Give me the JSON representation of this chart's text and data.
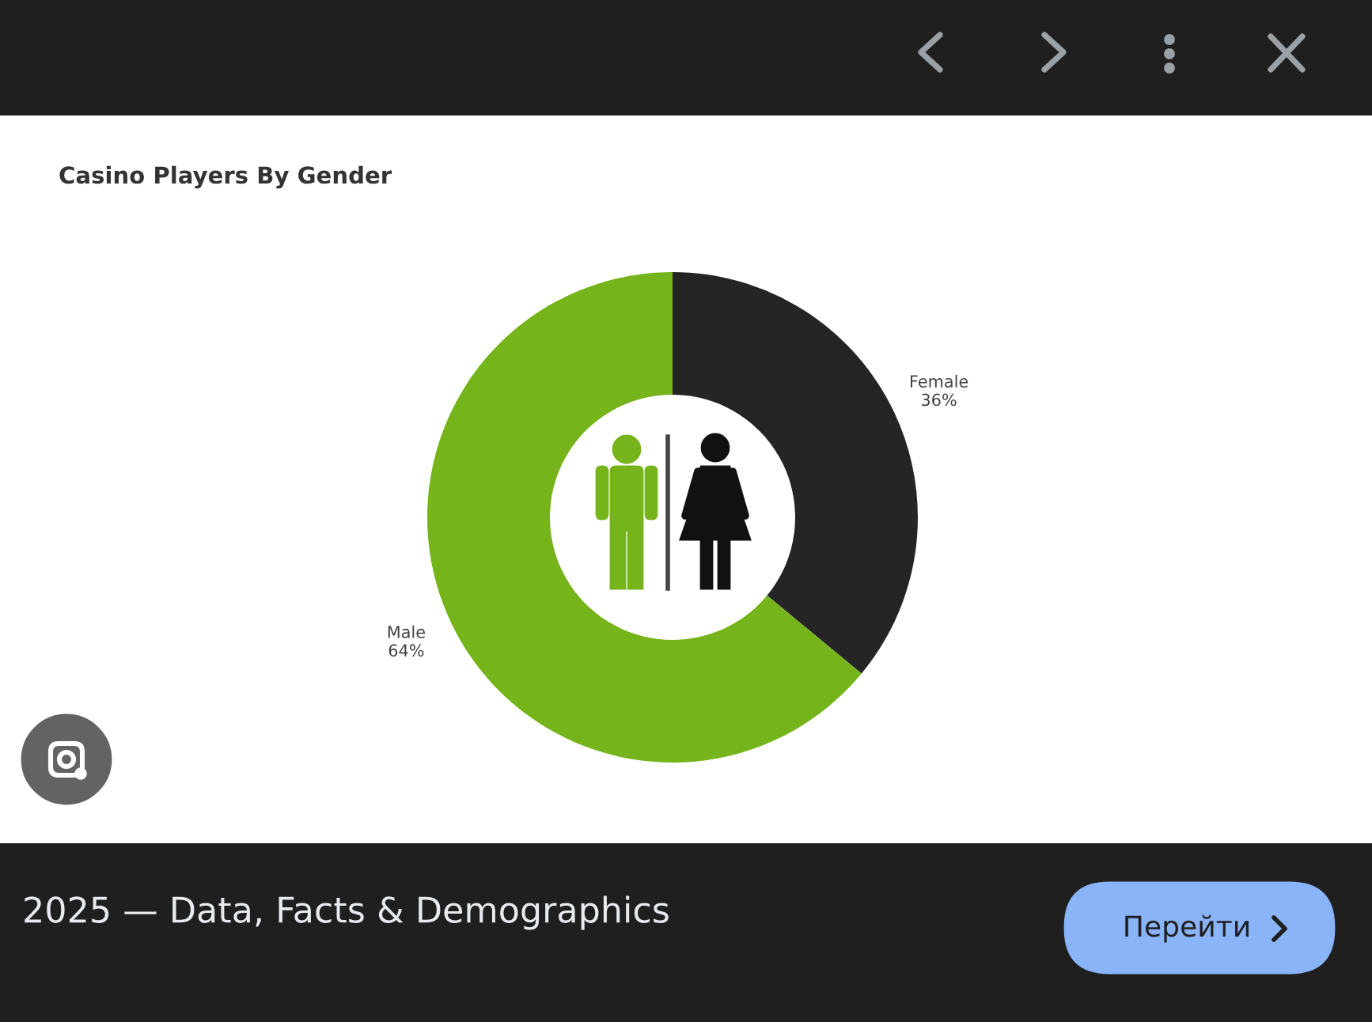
{
  "chart_data": {
    "type": "donut",
    "title": "Casino Players By Gender",
    "categories": [
      "Female",
      "Male"
    ],
    "values": [
      36,
      64
    ],
    "colors": [
      "#252525",
      "#76b41b"
    ],
    "value_labels": [
      "36%",
      "64%"
    ],
    "annotations": [
      "2025 — Data, Facts & Demographics",
      "Перейти"
    ]
  }
}
